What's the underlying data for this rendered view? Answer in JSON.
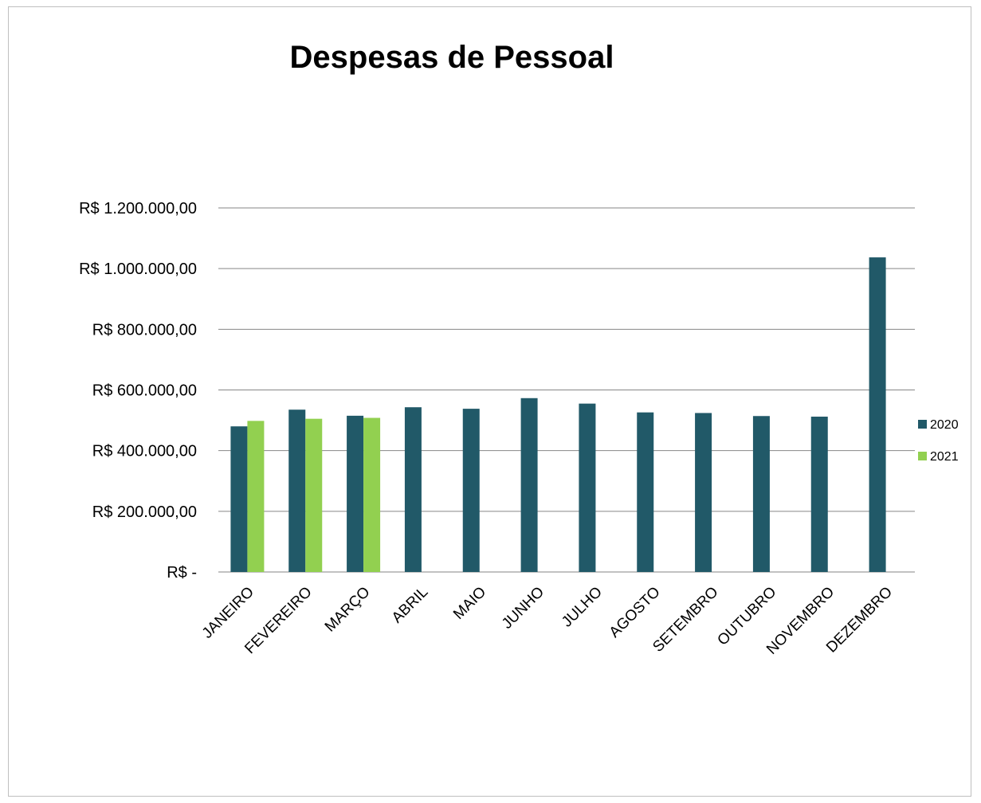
{
  "chart_data": {
    "type": "bar",
    "title": "Despesas de Pessoal",
    "xlabel": "",
    "ylabel": "",
    "categories": [
      "JANEIRO",
      "FEVEREIRO",
      "MARÇO",
      "ABRIL",
      "MAIO",
      "JUNHO",
      "JULHO",
      "AGOSTO",
      "SETEMBRO",
      "OUTUBRO",
      "NOVEMBRO",
      "DEZEMBRO"
    ],
    "series": [
      {
        "name": "2020",
        "color": "#215968",
        "values": [
          480000,
          535000,
          515000,
          543000,
          538000,
          573000,
          555000,
          526000,
          524000,
          514000,
          512000,
          1037000
        ]
      },
      {
        "name": "2021",
        "color": "#92d050",
        "values": [
          498000,
          505000,
          508000,
          null,
          null,
          null,
          null,
          null,
          null,
          null,
          null,
          null
        ]
      }
    ],
    "ylim": [
      0,
      1200000
    ],
    "yticks": [
      0,
      200000,
      400000,
      600000,
      800000,
      1000000,
      1200000
    ],
    "ytick_labels": [
      "R$ -",
      "R$ 200.000,00",
      "R$ 400.000,00",
      "R$ 600.000,00",
      "R$ 800.000,00",
      "R$ 1.000.000,00",
      "R$ 1.200.000,00"
    ],
    "grid": true,
    "legend_position": "right",
    "gridline_color": "#868686"
  }
}
